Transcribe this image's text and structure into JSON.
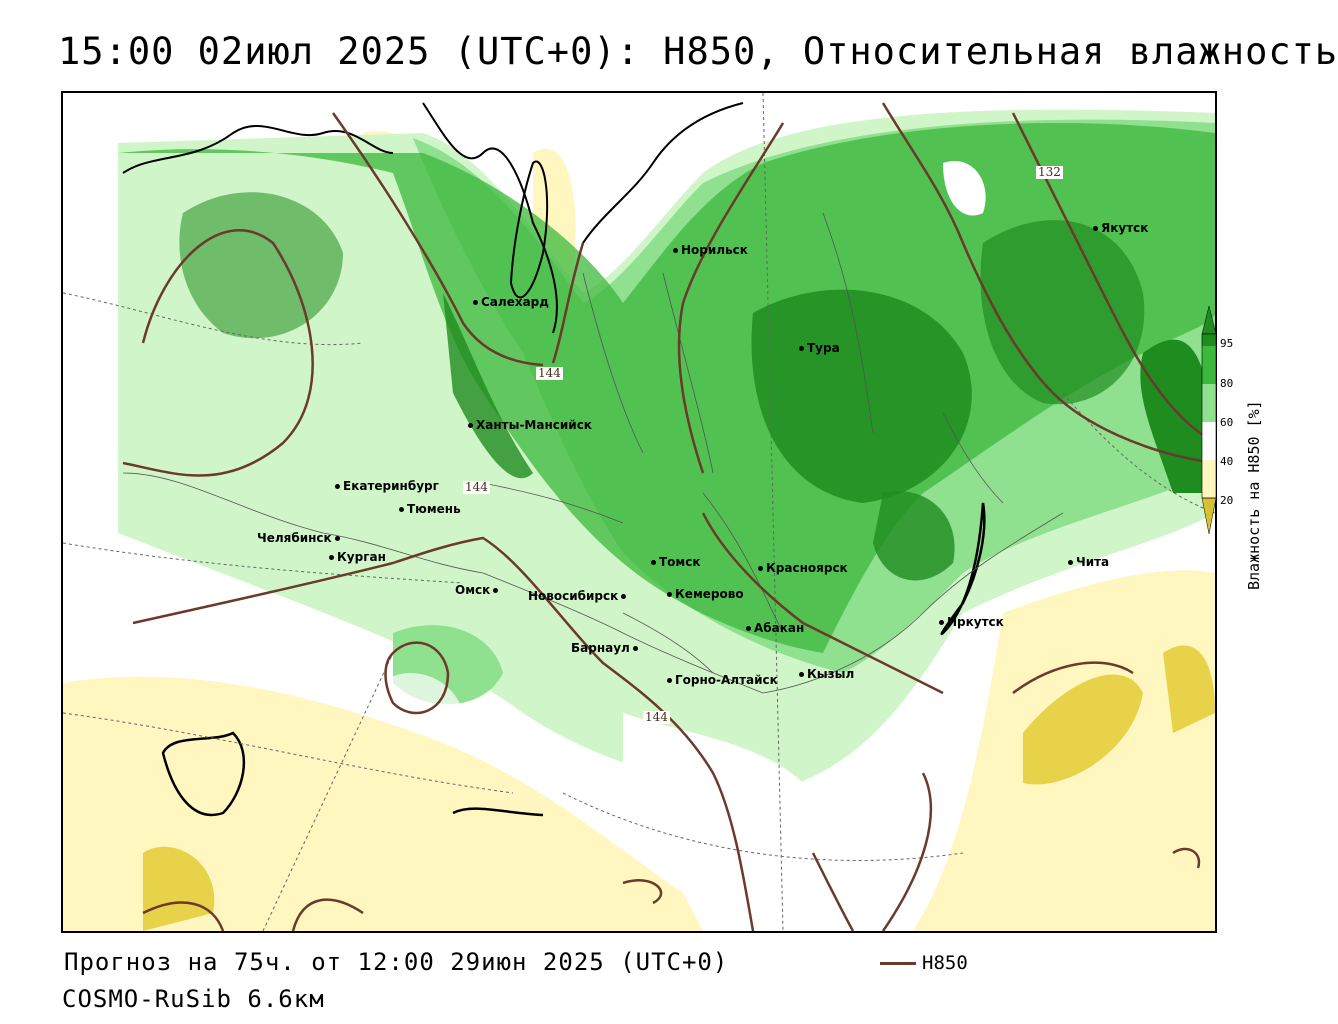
{
  "title": "15:00 02июл 2025 (UTC+0): H850, Относительная влажность",
  "footer": {
    "forecast": "Прогноз на 75ч. от 12:00 29июн 2025 (UTC+0)",
    "model": "COSMO-RuSib 6.6км",
    "legend_label": "H850"
  },
  "scale": {
    "label": "Влажность на H850 [%]",
    "ticks": [
      "95",
      "80",
      "60",
      "40",
      "20"
    ],
    "colors": [
      "#1f8c1f",
      "#3cb83c",
      "#8fe08f",
      "#d0f5c8",
      "#ffffff",
      "#fff6c0",
      "#f2e27a",
      "#d8c030"
    ]
  },
  "contour_labels": [
    "132",
    "144",
    "144",
    "144"
  ],
  "cities": [
    {
      "name": "Норильск"
    },
    {
      "name": "Якутск"
    },
    {
      "name": "Салехард"
    },
    {
      "name": "Тура"
    },
    {
      "name": "Ханты-Мансийск"
    },
    {
      "name": "Екатеринбург"
    },
    {
      "name": "Тюмень"
    },
    {
      "name": "Челябинск"
    },
    {
      "name": "Курган"
    },
    {
      "name": "Томск"
    },
    {
      "name": "Красноярск"
    },
    {
      "name": "Чита"
    },
    {
      "name": "Омск"
    },
    {
      "name": "Новосибирск"
    },
    {
      "name": "Кемерово"
    },
    {
      "name": "Иркутск"
    },
    {
      "name": "Абакан"
    },
    {
      "name": "Барнаул"
    },
    {
      "name": "Кызыл"
    },
    {
      "name": "Горно-Алтайск"
    }
  ],
  "colors": {
    "contour": "#6b3a2a",
    "dark_green": "#1f8c1f",
    "green": "#3cb83c",
    "light_green": "#8fe08f",
    "pale_green": "#d0f5c8",
    "pale_yellow": "#fff6c0",
    "yellow": "#f2e27a"
  }
}
